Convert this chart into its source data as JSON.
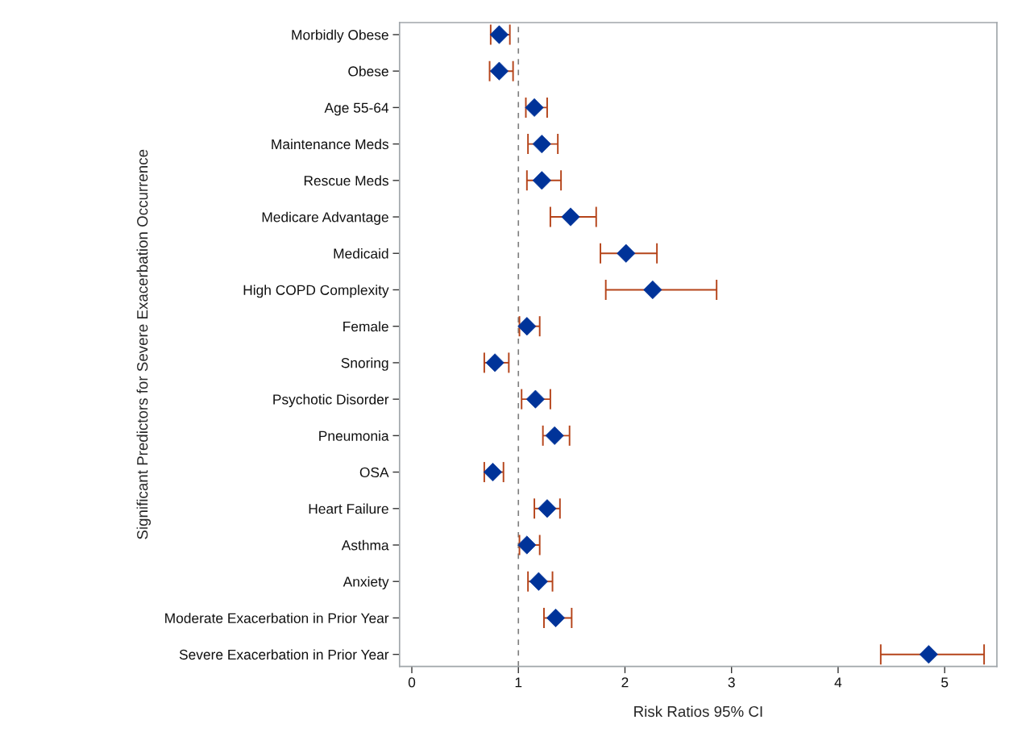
{
  "chart_data": {
    "type": "scatter",
    "orientation": "horizontal",
    "xlabel": "Risk Ratios 95% CI",
    "ylabel": "Significant Predictors for Severe Exacerbation Occurrence",
    "categories": [
      "Morbidly Obese",
      "Obese",
      "Age 55-64",
      "Maintenance Meds",
      "Rescue Meds",
      "Medicare Advantage",
      "Medicaid",
      "High COPD Complexity",
      "Female",
      "Snoring",
      "Psychotic Disorder",
      "Pneumonia",
      "OSA",
      "Heart Failure",
      "Asthma",
      "Anxiety",
      "Moderate Exacerbation in Prior Year",
      "Severe Exacerbation in Prior Year"
    ],
    "color": "#003399",
    "values": [
      0.82,
      0.82,
      1.15,
      1.22,
      1.22,
      1.49,
      2.01,
      2.26,
      1.08,
      0.78,
      1.16,
      1.34,
      0.76,
      1.27,
      1.08,
      1.19,
      1.35,
      4.85
    ],
    "errors": [
      [
        0.74,
        0.92
      ],
      [
        0.73,
        0.95
      ],
      [
        1.07,
        1.27
      ],
      [
        1.09,
        1.37
      ],
      [
        1.08,
        1.4
      ],
      [
        1.3,
        1.73
      ],
      [
        1.77,
        2.3
      ],
      [
        1.82,
        2.86
      ],
      [
        1.01,
        1.2
      ],
      [
        0.68,
        0.91
      ],
      [
        1.03,
        1.3
      ],
      [
        1.23,
        1.48
      ],
      [
        0.68,
        0.86
      ],
      [
        1.15,
        1.39
      ],
      [
        1.01,
        1.2
      ],
      [
        1.09,
        1.32
      ],
      [
        1.24,
        1.5
      ],
      [
        4.4,
        5.37
      ]
    ],
    "xlim": [
      -0.115,
      5.49
    ],
    "xticks": [
      0,
      1,
      2,
      3,
      4,
      5
    ],
    "ref_lines": [
      {
        "axis": "x",
        "value": 1,
        "color": "#808080",
        "line_style": "dashed"
      }
    ],
    "marker": "diamond",
    "grid": false,
    "legend": false
  }
}
